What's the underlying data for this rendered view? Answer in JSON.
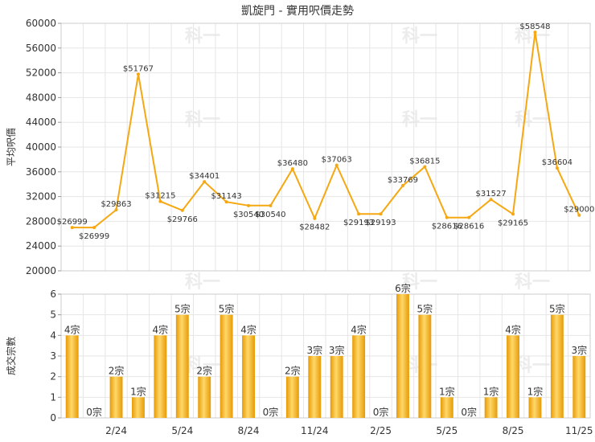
{
  "chart_data": [
    {
      "type": "line",
      "title": "凱旋門 - 實用呎價走勢",
      "ylabel": "平均呎價",
      "ylim": [
        20000,
        60000
      ],
      "yticks": [
        "20000",
        "24000",
        "28000",
        "32000",
        "36000",
        "40000",
        "44000",
        "48000",
        "52000",
        "56000",
        "60000"
      ],
      "color": "#f5a811",
      "values": [
        26999,
        26999,
        29863,
        51767,
        31215,
        29766,
        34401,
        31143,
        30540,
        30540,
        36480,
        28482,
        37063,
        29193,
        29193,
        33769,
        36815,
        28616,
        28616,
        31527,
        29165,
        58548,
        36604,
        29000
      ],
      "labels": [
        "$26999",
        "$26999",
        "$29863",
        "$51767",
        "$31215",
        "$29766",
        "$34401",
        "$31143",
        "$30540",
        "$30540",
        "$36480",
        "$28482",
        "$37063",
        "$29193",
        "$29193",
        "$33769",
        "$36815",
        "$28616",
        "$28616",
        "$31527",
        "$29165",
        "$58548",
        "$36604",
        "$29000"
      ]
    },
    {
      "type": "bar",
      "ylabel": "成交宗數",
      "ylim": [
        0,
        6
      ],
      "yticks": [
        "0",
        "1",
        "2",
        "3",
        "4",
        "5",
        "6"
      ],
      "color": "#f5b826",
      "categories_shown": [
        "2/24",
        "5/24",
        "8/24",
        "11/24",
        "2/25",
        "5/25",
        "8/25",
        "11/25"
      ],
      "values": [
        4,
        0,
        2,
        1,
        4,
        5,
        2,
        5,
        4,
        0,
        2,
        3,
        3,
        4,
        0,
        6,
        5,
        1,
        0,
        1,
        4,
        1,
        5,
        3
      ],
      "labels": [
        "4宗",
        "0宗",
        "2宗",
        "1宗",
        "4宗",
        "5宗",
        "2宗",
        "5宗",
        "4宗",
        "0宗",
        "2宗",
        "3宗",
        "3宗",
        "4宗",
        "0宗",
        "6宗",
        "5宗",
        "1宗",
        "0宗",
        "1宗",
        "4宗",
        "1宗",
        "5宗",
        "3宗"
      ]
    }
  ],
  "watermark": "科一"
}
